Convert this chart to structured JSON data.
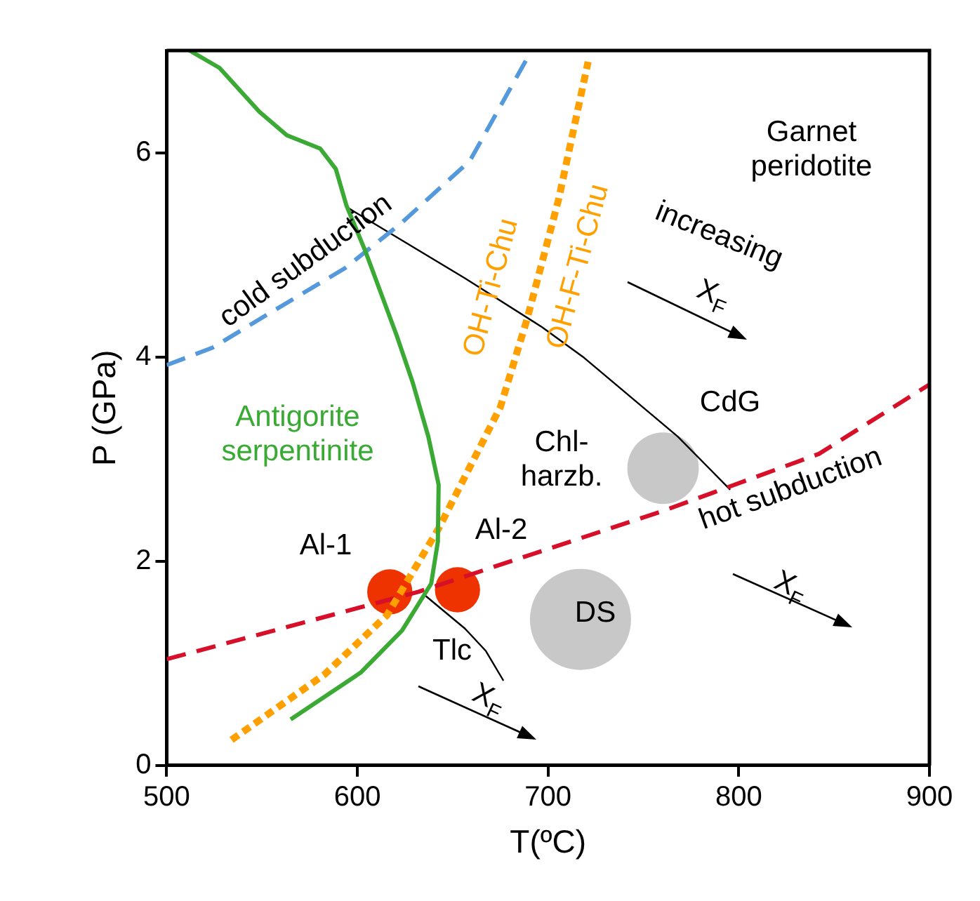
{
  "chart_data": {
    "type": "line",
    "xlabel": "T(ºC)",
    "ylabel": "P (GPa)",
    "xlim": [
      500,
      900
    ],
    "ylim": [
      0,
      7
    ],
    "xticks": [
      500,
      600,
      700,
      800,
      900
    ],
    "yticks": [
      0,
      2,
      4,
      6
    ],
    "grid": false,
    "legend": false,
    "series": [
      {
        "color": "#3aaa35",
        "line_style": "solid",
        "x": [
          512,
          527.7,
          548.6,
          563,
          580.5,
          588.7,
          594.3,
          604.3,
          620.6,
          629,
          637.2,
          642.6,
          642.2,
          638.7,
          623.4,
          601.8,
          565
        ],
        "values": [
          7.0,
          6.83,
          6.4,
          6.17,
          6.04,
          5.84,
          5.48,
          5.03,
          4.21,
          3.75,
          3.22,
          2.75,
          2.19,
          1.78,
          1.32,
          0.91,
          0.45
        ]
      },
      {
        "name": "cold subduction",
        "color": "#5599dd",
        "line_style": "dashed",
        "x": [
          500,
          524,
          555,
          593.6,
          623,
          659,
          690.4
        ],
        "values": [
          3.92,
          4.09,
          4.44,
          4.87,
          5.31,
          5.92,
          6.97
        ]
      },
      {
        "color": "#ffa000",
        "line_style": "dotted",
        "x": [
          534,
          582.7,
          615.5,
          642.6,
          675,
          689,
          705.5,
          721
        ],
        "values": [
          0.25,
          0.89,
          1.47,
          2.32,
          3.51,
          4.37,
          5.54,
          6.89
        ]
      },
      {
        "name": "hot subduction",
        "color": "#d7102a",
        "line_style": "dashed",
        "x": [
          500,
          632,
          760,
          842,
          900
        ],
        "values": [
          1.04,
          1.7,
          2.49,
          3.05,
          3.73
        ]
      },
      {
        "color": "#000000",
        "line_style": "solid",
        "x": [
          595,
          656.4,
          697,
          719,
          768,
          795.5
        ],
        "values": [
          5.46,
          4.77,
          4.29,
          3.99,
          3.22,
          2.7
        ]
      },
      {
        "color": "#000000",
        "line_style": "solid",
        "x": [
          634.5,
          656.4,
          667.4,
          676.6
        ],
        "values": [
          1.68,
          1.34,
          1.12,
          0.83
        ]
      },
      {
        "type": "bubble",
        "color": "#ee3300",
        "x": [
          617,
          652.5
        ],
        "values": [
          1.7,
          1.72
        ],
        "sizes": [
          0.2,
          0.2
        ]
      },
      {
        "type": "bubble",
        "color": "#c8c8c8",
        "x": [
          760.3,
          717
        ],
        "values": [
          2.91,
          1.43
        ],
        "sizes": [
          0.5,
          1
        ]
      }
    ],
    "annotations": [
      "Garnet\nperidotite",
      "Antigorite\nserpentinite",
      "Chl-\nharzb.",
      "Tlc",
      "Al-1",
      "Al-2",
      "CdG",
      "DS",
      "increasing",
      "X$_{F}$",
      "X$_{F}$",
      "X$_{F}$",
      "OH-Ti-Chu",
      "OH-F-Ti-Chu"
    ]
  }
}
